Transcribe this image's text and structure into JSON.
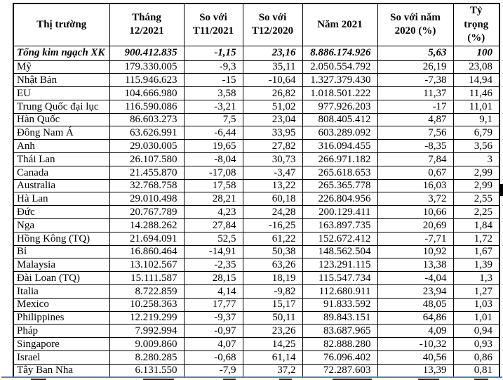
{
  "colors": {
    "border": "#000000",
    "text": "#000000",
    "divider_blue": "#4f81bd",
    "background": "#ffffff"
  },
  "table": {
    "columns": [
      {
        "label": "Thị trường"
      },
      {
        "label": "Tháng 12/2021"
      },
      {
        "label": "So với T11/2021"
      },
      {
        "label": "So với T12/2020"
      },
      {
        "label": "Năm 2021"
      },
      {
        "label": "So với năm 2020 (%)"
      },
      {
        "label": "Tỷ trọng (%)"
      }
    ],
    "total_row": {
      "market": "Tổng kim ngạch XK",
      "values": [
        "900.412.835",
        "-1,15",
        "23,16",
        "8.886.174.926",
        "5,63",
        "100"
      ]
    },
    "rows": [
      {
        "market": "Mỹ",
        "values": [
          "179.330.005",
          "-9,3",
          "35,11",
          "2.050.554.792",
          "26,19",
          "23,08"
        ]
      },
      {
        "market": "Nhật Bản",
        "values": [
          "115.946.623",
          "-15",
          "-10,64",
          "1.327.379.430",
          "-7,38",
          "14,94"
        ]
      },
      {
        "market": "EU",
        "values": [
          "104.666.980",
          "3,58",
          "26,82",
          "1.018.501.222",
          "11,37",
          "11,46"
        ]
      },
      {
        "market": "Trung Quốc đại lục",
        "values": [
          "116.590.086",
          "-3,21",
          "51,02",
          "977.926.203",
          "-17",
          "11,01"
        ]
      },
      {
        "market": "Hàn Quốc",
        "values": [
          "86.603.273",
          "7,5",
          "23,04",
          "808.405.412",
          "4,87",
          "9,1"
        ]
      },
      {
        "market": "Đông Nam Á",
        "values": [
          "63.626.991",
          "-6,44",
          "33,95",
          "603.289.092",
          "7,56",
          "6,79"
        ]
      },
      {
        "market": "Anh",
        "values": [
          "29.030.005",
          "19,65",
          "27,82",
          "316.094.455",
          "-8,35",
          "3,56"
        ]
      },
      {
        "market": "Thái Lan",
        "values": [
          "26.107.580",
          "-8,04",
          "30,73",
          "266.971.182",
          "7,84",
          "3"
        ]
      },
      {
        "market": "Canada",
        "values": [
          "21.455.870",
          "-17,08",
          "-3,47",
          "265.618.653",
          "0,67",
          "2,99"
        ]
      },
      {
        "market": "Australia",
        "values": [
          "32.768.758",
          "17,58",
          "13,22",
          "265.365.778",
          "16,03",
          "2,99"
        ]
      },
      {
        "market": "Hà Lan",
        "values": [
          "29.010.498",
          "28,21",
          "60,18",
          "226.804.956",
          "3,72",
          "2,55"
        ]
      },
      {
        "market": "Đức",
        "values": [
          "20.767.789",
          "4,23",
          "24,28",
          "200.129.411",
          "10,66",
          "2,25"
        ]
      },
      {
        "market": "Nga",
        "values": [
          "14.288.262",
          "27,84",
          "-16,25",
          "163.897.735",
          "20,69",
          "1,84"
        ]
      },
      {
        "market": "Hồng Kông (TQ)",
        "values": [
          "21.694.091",
          "52,5",
          "61,22",
          "152.672.412",
          "-7,71",
          "1,72"
        ]
      },
      {
        "market": "Bỉ",
        "values": [
          "16.860.464",
          "-14,91",
          "50,38",
          "148.562.504",
          "10,92",
          "1,67"
        ]
      },
      {
        "market": "Malaysia",
        "values": [
          "13.102.567",
          "-2,35",
          "63,26",
          "123.291.115",
          "13,38",
          "1,39"
        ]
      },
      {
        "market": "Đài Loan (TQ)",
        "values": [
          "15.111.587",
          "28,15",
          "18,19",
          "115.547.734",
          "-4,04",
          "1,3"
        ]
      },
      {
        "market": "Italia",
        "values": [
          "8.722.859",
          "4,14",
          "-9,82",
          "112.680.911",
          "23,94",
          "1,27"
        ]
      },
      {
        "market": "Mexico",
        "values": [
          "10.258.363",
          "17,77",
          "15,17",
          "91.833.592",
          "48,05",
          "1,03"
        ]
      },
      {
        "market": "Philippines",
        "values": [
          "12.219.299",
          "-9,37",
          "50,11",
          "89.843.151",
          "64,86",
          "1,01"
        ]
      },
      {
        "market": "Pháp",
        "values": [
          "7.992.994",
          "-0,97",
          "23,26",
          "83.687.965",
          "4,09",
          "0,94"
        ]
      },
      {
        "market": "Singapore",
        "values": [
          "9.009.860",
          "4,07",
          "14,25",
          "82.888.280",
          "-10,32",
          "0,93"
        ]
      },
      {
        "market": "Israel",
        "values": [
          "8.280.285",
          "-0,68",
          "61,14",
          "76.096.402",
          "40,56",
          "0,86"
        ]
      },
      {
        "market": "Tây Ban Nha",
        "values": [
          "6.131.550",
          "-7,9",
          "37,2",
          "72.287.603",
          "13,39",
          "0,81"
        ]
      }
    ]
  }
}
